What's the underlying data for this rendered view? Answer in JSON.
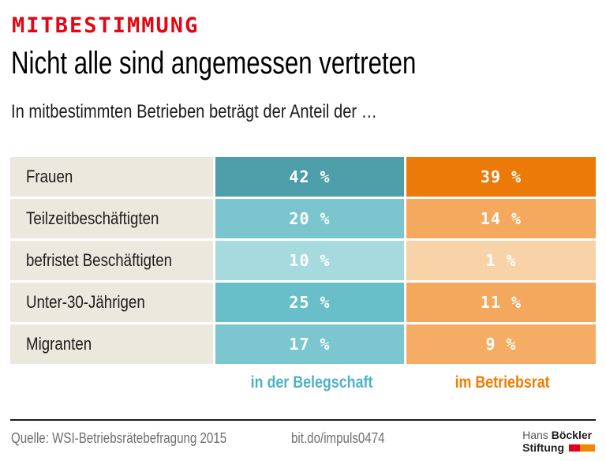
{
  "theme": {
    "red": "#e30613",
    "text_black": "#1d1d1b",
    "label_bg": "#ebe9de",
    "teal_label": "#4cb3c6",
    "orange_label": "#ee7d00",
    "footer_gray": "#6f6f6e",
    "logo_red": "#e2001a",
    "logo_orange": "#f18700"
  },
  "header": {
    "kicker": "MITBESTIMMUNG",
    "title": "Nicht alle sind angemessen vertreten",
    "subtitle": "In mitbestimmten Betrieben beträgt der Anteil der …"
  },
  "chart_data": {
    "type": "table",
    "title": "Nicht alle sind angemessen vertreten",
    "subtitle": "In mitbestimmten Betrieben beträgt der Anteil der …",
    "categories": [
      "Frauen",
      "Teilzeitbeschäftigten",
      "befristet Beschäftigten",
      "Unter-30-Jährigen",
      "Migranten"
    ],
    "unit": "%",
    "series": [
      {
        "name": "in der Belegschaft",
        "values": [
          42,
          20,
          10,
          25,
          17
        ],
        "cell_colors": [
          "#4d9ea9",
          "#7ac5ce",
          "#a7dade",
          "#68bfc9",
          "#7cc6d0"
        ]
      },
      {
        "name": "im Betriebsrat",
        "values": [
          39,
          14,
          1,
          11,
          9
        ],
        "cell_colors": [
          "#ec7a08",
          "#f4a95e",
          "#f8d3a7",
          "#f4a85d",
          "#f5ad66"
        ]
      }
    ],
    "legend_position": "bottom",
    "value_label_format": "{value} %"
  },
  "footer": {
    "source": "Quelle: WSI-Betriebsrätebefragung 2015",
    "link": "bit.do/impuls0474",
    "logo": {
      "name_regular": "Hans",
      "name_bold": "Böckler",
      "line2": "Stiftung"
    }
  }
}
